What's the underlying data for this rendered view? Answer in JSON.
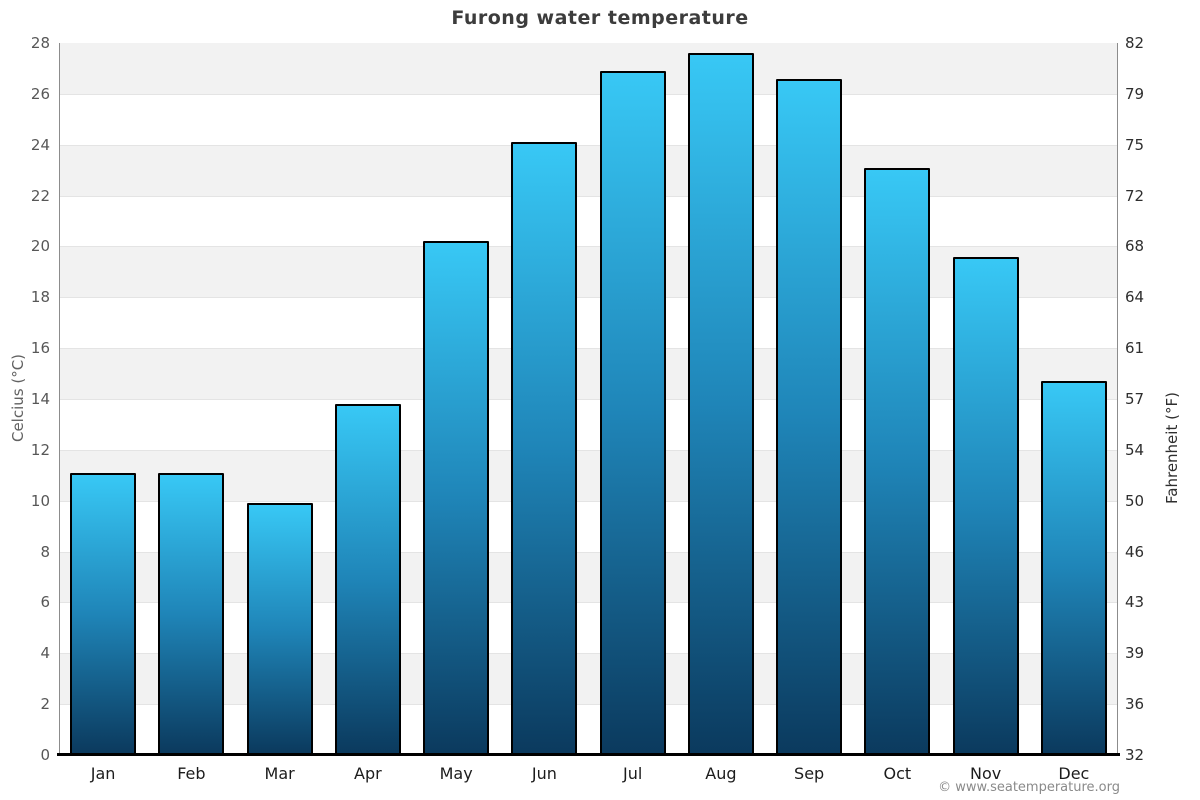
{
  "page": {
    "title": "Furong water temperature",
    "footer": "© www.seatemperature.org"
  },
  "chart_data": {
    "type": "bar",
    "title": "Furong water temperature",
    "categories": [
      "Jan",
      "Feb",
      "Mar",
      "Apr",
      "May",
      "Jun",
      "Jul",
      "Aug",
      "Sep",
      "Oct",
      "Nov",
      "Dec"
    ],
    "values": [
      11.1,
      11.1,
      9.9,
      13.8,
      20.2,
      24.1,
      26.9,
      27.6,
      26.6,
      23.1,
      19.6,
      14.7
    ],
    "unit": "°C",
    "xlabel": "",
    "ylabel_left": "Celcius (°C)",
    "ylabel_right": "Fahrenheit (°F)",
    "ylim": [
      0,
      28
    ],
    "yticks_celsius": [
      0,
      2,
      4,
      6,
      8,
      10,
      12,
      14,
      16,
      18,
      20,
      22,
      24,
      26,
      28
    ],
    "yticks_fahrenheit": [
      32,
      36,
      39,
      43,
      46,
      50,
      54,
      57,
      61,
      64,
      68,
      72,
      75,
      79,
      82
    ],
    "grid": "alternating horizontal bands every 2°C, gray band at top",
    "legend": "none",
    "colors": {
      "bar_gradient_top": "#38c8f5",
      "bar_gradient_mid": "#1f85b8",
      "bar_gradient_bottom": "#0b3a5e",
      "bar_border": "#000000",
      "band_gray": "#f2f2f2",
      "gridline": "#e4e4e4",
      "axis_line": "#8c8c8c",
      "baseline": "#000000",
      "title_text": "#3c3c3c",
      "left_tick_text": "#575757",
      "right_tick_text": "#2e2e2e",
      "month_text": "#1c1c1c",
      "footer_text": "#8a8a8a"
    }
  }
}
